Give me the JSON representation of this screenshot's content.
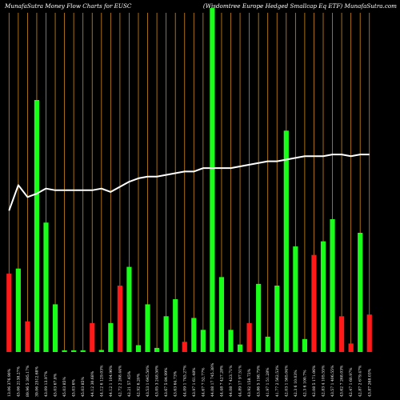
{
  "chart_data": {
    "type": "bar",
    "title": "MunafaSutra  Money Flow  Charts for EUSC",
    "subtitle": "(Wisdomtree   Europe   Hedged Smallcap Eq ETF) MunafaSutra.com",
    "xlabel": "",
    "ylabel": "",
    "ylim": [
      0,
      100
    ],
    "grid": "vertical",
    "background": "#000000",
    "grid_color": "#d08a1a",
    "colors": {
      "up": "#1aff1a",
      "down": "#ff1a1a",
      "line": "#ffffff"
    },
    "categories": [
      "13.06 376.90%",
      "45.06 2138.27%",
      "89.96 5 395.17%",
      "39.06 2512.68%",
      "43.09 13.97%",
      "45.03 67.8%",
      "45.03 85%",
      "45.03 6%",
      "45.03 85%",
      "44.12 30.68%",
      "44.12 6 129.03%",
      "44.12 1 104.96%",
      "42.72 2 268.44%",
      "42.21 57.45%",
      "42.92 6.20%",
      "43.53 1 645.50%",
      "43.05 3 248.50%",
      "43.67 5 84.99%",
      "43.63 64.73%",
      "44.09 1 745.27%",
      "43.97 1 61.48%",
      "44.67 7 52.77%",
      "44.08 17 745.38%",
      "44.48 7 427.28%",
      "44.08 7 423.71%",
      "44.89 17 97.51%",
      "43.92 158.72%",
      "43.86 5 198.75%",
      "41.97 1 51.28%",
      "41.77 2 562.53%",
      "42.03 1 565.04%",
      "42.3 6 10.03%",
      "42.3 6 100.7%",
      "42.08 5 171.06%",
      "42.83 4 105.55%",
      "43.57 1 406.55%",
      "43.62 7 268.03%",
      "42.47 1 60.97%",
      "42.87 2 679.47%",
      "43.87 268.03%"
    ],
    "series": [
      {
        "type": "bar",
        "values": [
          23,
          24.5,
          9,
          74,
          38,
          14,
          0.5,
          0.5,
          0.5,
          8.5,
          0.6,
          8.5,
          19.5,
          25,
          2,
          14,
          1.2,
          10.5,
          15.5,
          3,
          10,
          6.5,
          101,
          22,
          6.5,
          2.2,
          8.5,
          20,
          4.5,
          19.5,
          65,
          31,
          3.8,
          28.5,
          32.5,
          39,
          10.5,
          2.5,
          35,
          11
        ],
        "directions": [
          "down",
          "up",
          "down",
          "up",
          "up",
          "up",
          "up",
          "up",
          "up",
          "down",
          "up",
          "up",
          "down",
          "up",
          "up",
          "up",
          "up",
          "up",
          "up",
          "down",
          "up",
          "up",
          "up",
          "up",
          "up",
          "up",
          "down",
          "up",
          "up",
          "up",
          "up",
          "up",
          "up",
          "down",
          "up",
          "up",
          "down",
          "down",
          "up",
          "down"
        ]
      },
      {
        "type": "line",
        "values": [
          41.5,
          49,
          45.5,
          46.5,
          48,
          47.5,
          47.5,
          47.5,
          47.5,
          47.5,
          48,
          47,
          48.5,
          50,
          51,
          51.5,
          51.5,
          52,
          52.5,
          53,
          53,
          54,
          54,
          54,
          54,
          54.5,
          55,
          55.5,
          56,
          56,
          56.5,
          57,
          57.5,
          57.5,
          57.5,
          58,
          58,
          57.5,
          58,
          58
        ]
      }
    ]
  }
}
